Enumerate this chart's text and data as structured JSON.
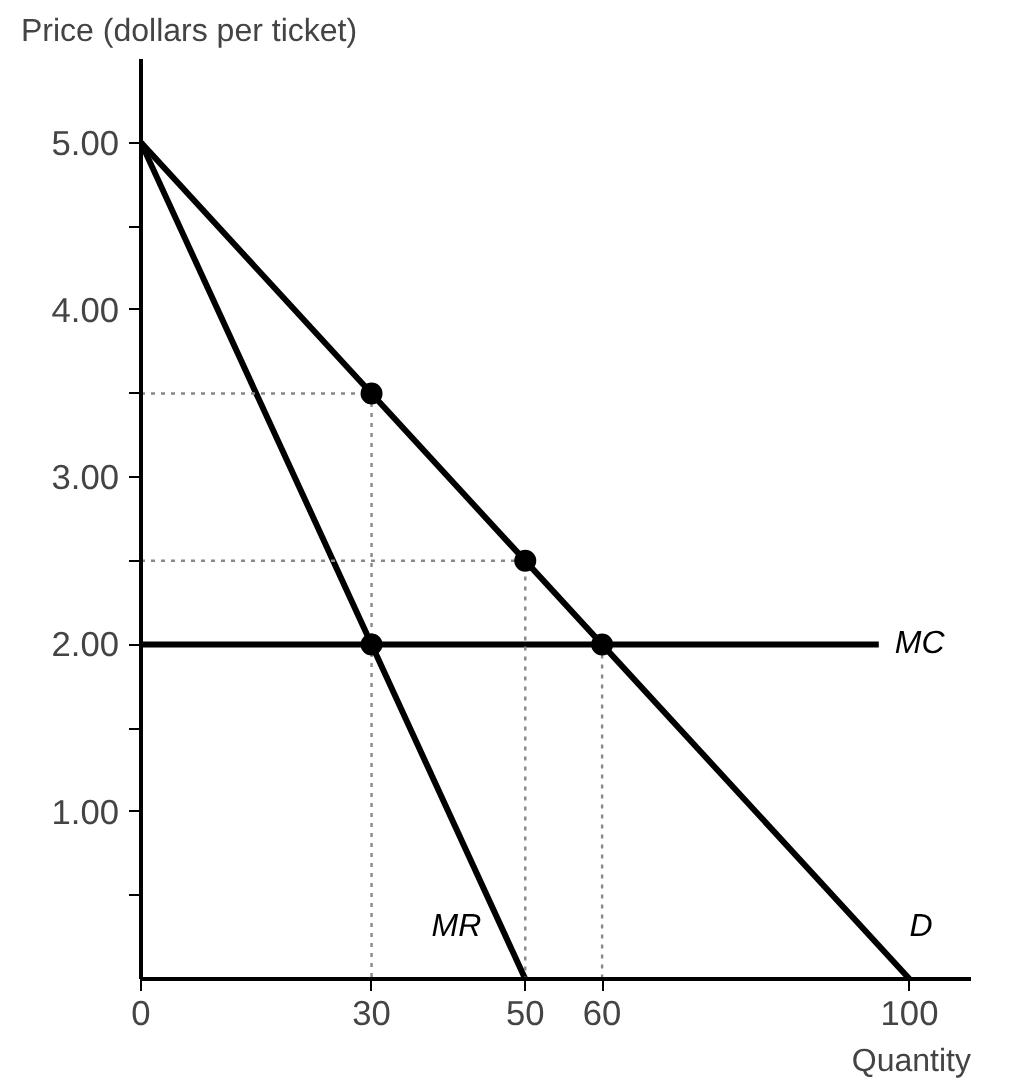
{
  "chart_data": {
    "type": "line",
    "ylabel": "Price (dollars per ticket)",
    "xlabel": "Quantity",
    "xlim": [
      0,
      108
    ],
    "ylim": [
      0,
      5.5
    ],
    "xticks": [
      0,
      30,
      50,
      60,
      100
    ],
    "yticks": [
      {
        "value": 0.5,
        "label": null
      },
      {
        "value": 1,
        "label": "1.00"
      },
      {
        "value": 1.5,
        "label": null
      },
      {
        "value": 2,
        "label": "2.00"
      },
      {
        "value": 2.5,
        "label": null
      },
      {
        "value": 3,
        "label": "3.00"
      },
      {
        "value": 3.5,
        "label": null
      },
      {
        "value": 4,
        "label": "4.00"
      },
      {
        "value": 4.5,
        "label": null
      },
      {
        "value": 5,
        "label": "5.00"
      }
    ],
    "grid": false,
    "legend": false,
    "line_style": "solid",
    "marker": "none",
    "series": [
      {
        "name": "D",
        "color": "#000000",
        "x": [
          0,
          100
        ],
        "values": [
          5,
          0
        ]
      },
      {
        "name": "MR",
        "color": "#000000",
        "x": [
          0,
          50
        ],
        "values": [
          5,
          0
        ]
      },
      {
        "name": "MC",
        "color": "#000000",
        "x": [
          0,
          96
        ],
        "values": [
          2,
          2
        ]
      },
      {
        "type": "line",
        "color": "#888888",
        "line_style": "dotted",
        "x": [
          0,
          30,
          30
        ],
        "values": [
          3.5,
          3.5,
          0
        ]
      },
      {
        "type": "line",
        "color": "#888888",
        "line_style": "dotted",
        "x": [
          0,
          50,
          50
        ],
        "values": [
          2.5,
          2.5,
          0
        ]
      },
      {
        "type": "line",
        "color": "#888888",
        "line_style": "dotted",
        "x": [
          60,
          60
        ],
        "values": [
          2,
          0
        ]
      },
      {
        "type": "scatter",
        "color": "#000000",
        "marker": "circle",
        "x": [
          30,
          50,
          60,
          30
        ],
        "values": [
          3.5,
          2.5,
          2,
          2
        ]
      }
    ]
  }
}
